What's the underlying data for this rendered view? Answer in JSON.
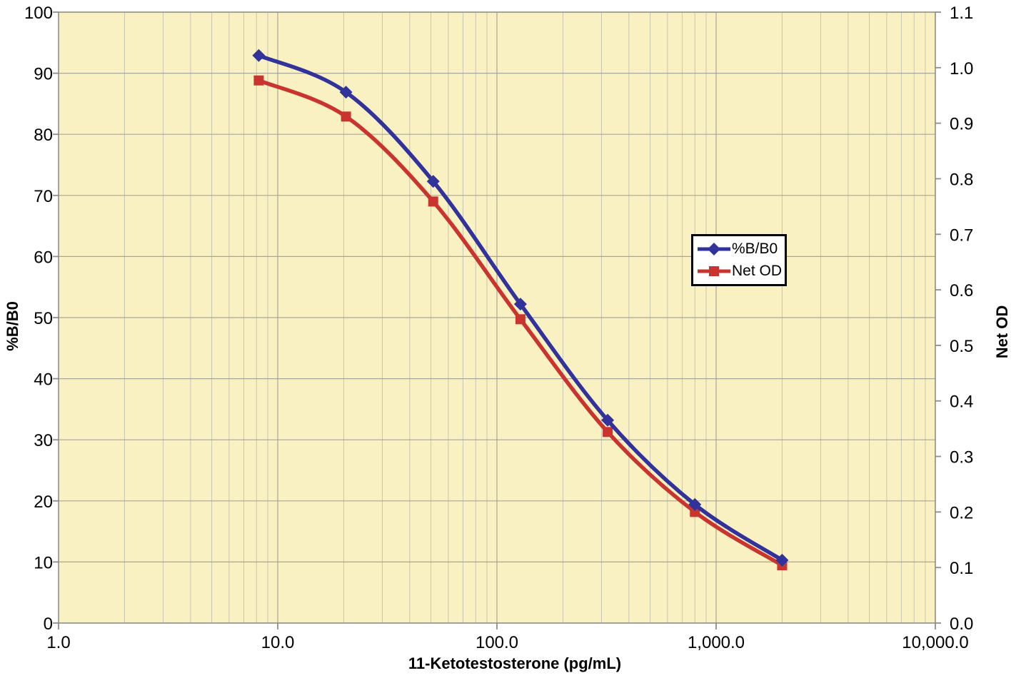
{
  "chart_data": {
    "type": "line",
    "title": "",
    "x_axis": {
      "label": "11-Ketotestosterone (pg/mL)",
      "scale": "log",
      "min": 1,
      "max": 10000,
      "tick_values": [
        1,
        10,
        100,
        1000,
        10000
      ],
      "tick_labels": [
        "1.0",
        "10.0",
        "100.0",
        "1,000.0",
        "10,000.0"
      ],
      "minor_gridlines": "log-decades-2-to-9"
    },
    "y_left_axis": {
      "label": "%B/B0",
      "min": 0,
      "max": 100,
      "step": 10,
      "tick_labels": [
        "0",
        "10",
        "20",
        "30",
        "40",
        "50",
        "60",
        "70",
        "80",
        "90",
        "100"
      ]
    },
    "y_right_axis": {
      "label": "Net OD",
      "min": 0,
      "max": 1.1,
      "step": 0.1,
      "tick_labels": [
        "0.0",
        "0.1",
        "0.2",
        "0.3",
        "0.4",
        "0.5",
        "0.6",
        "0.7",
        "0.8",
        "0.9",
        "1.0",
        "1.1"
      ]
    },
    "x": [
      8.192,
      20.48,
      51.2,
      128,
      320,
      800,
      2000
    ],
    "series": [
      {
        "name": "%B/B0",
        "axis": "left",
        "color": "#32329B",
        "marker": "diamond",
        "values": [
          92.9,
          86.9,
          72.3,
          52.2,
          33.2,
          19.4,
          10.3
        ]
      },
      {
        "name": "Net OD",
        "axis": "right",
        "color": "#C9342E",
        "marker": "square",
        "values": [
          0.977,
          0.912,
          0.759,
          0.547,
          0.344,
          0.2,
          0.104
        ]
      }
    ],
    "legend": {
      "position": "center-right",
      "entries": [
        "%B/B0",
        "Net OD"
      ]
    },
    "grid": "on",
    "style": {
      "plot_background": "#FAF1C3",
      "page_background": "#FFFFFF",
      "grid_major_color": "#A8A69A",
      "grid_minor_color": "#C7C5B5",
      "axis_line_color": "#8F8E85",
      "tick_color": "#8F8E85",
      "text_color": "#000000",
      "legend_border_color": "#000000",
      "legend_background": "#FFFFFF"
    }
  }
}
